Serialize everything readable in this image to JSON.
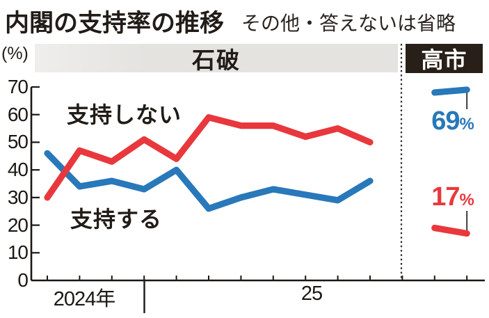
{
  "header": {
    "title": "内閣の支持率の推移",
    "subtitle": "その他・答えないは省略"
  },
  "bands": {
    "ishiba_label": "石破",
    "takaichi_label": "高市"
  },
  "axis": {
    "unit_label": "(%)",
    "y_ticks": [
      "70",
      "60",
      "50",
      "40",
      "30",
      "20",
      "10",
      "0"
    ],
    "x_label_2024": "2024年",
    "x_label_25": "25"
  },
  "series_labels": {
    "disapprove": "支持しない",
    "approve": "支持する"
  },
  "callouts": {
    "approve_value": "69",
    "approve_unit": "%",
    "disapprove_value": "17",
    "disapprove_unit": "%"
  },
  "colors": {
    "approve_blue": "#2878ba",
    "disapprove_red": "#e8383d",
    "axis_black": "#1c1713",
    "band_gray": "#e4e3e0",
    "takaichi_box_black": "#281f18"
  },
  "chart_data": {
    "type": "line",
    "title": "内閣の支持率の推移",
    "note": "その他・答えないは省略",
    "ylabel": "(%)",
    "ylim": [
      0,
      70
    ],
    "y_ticks": [
      70,
      60,
      50,
      40,
      30,
      20,
      10,
      0
    ],
    "x_axis_labels": [
      "2024年",
      "25"
    ],
    "grid": false,
    "legend_position": "inline-labels",
    "periods": [
      {
        "name": "石破",
        "tick_indices": [
          0,
          1,
          2,
          3,
          4,
          5,
          6,
          7,
          8,
          9,
          10
        ],
        "series": [
          {
            "name": "支持しない",
            "color": "#e8383d",
            "values": [
              30,
              47,
              43,
              51,
              44,
              59,
              56,
              56,
              52,
              55,
              50
            ]
          },
          {
            "name": "支持する",
            "color": "#2878ba",
            "values": [
              46,
              34,
              36,
              33,
              40,
              26,
              30,
              33,
              31,
              29,
              36
            ]
          }
        ]
      },
      {
        "name": "高市",
        "tick_indices": [
          12,
          13
        ],
        "series": [
          {
            "name": "支持しない",
            "color": "#e8383d",
            "values": [
              19,
              17
            ]
          },
          {
            "name": "支持する",
            "color": "#2878ba",
            "values": [
              68,
              69
            ]
          }
        ]
      }
    ],
    "latest_callouts": {
      "支持する": "69%",
      "支持しない": "17%"
    }
  }
}
